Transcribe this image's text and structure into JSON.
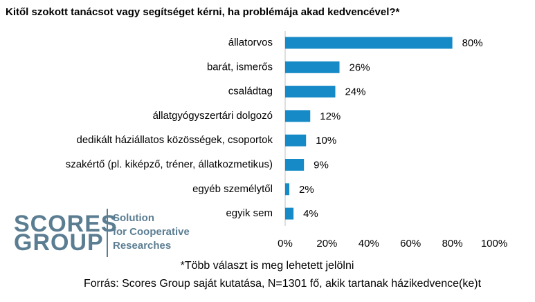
{
  "chart_data": {
    "type": "bar",
    "orientation": "horizontal",
    "title": "Kitől szokott tanácsot vagy segítséget kérni, ha problémája akad kedvencével?*",
    "categories": [
      "állatorvos",
      "barát, ismerős",
      "családtag",
      "állatgyógyszertári dolgozó",
      "dedikált háziállatos közösségek, csoportok",
      "szakértő (pl. kiképző, tréner, állatkozmetikus)",
      "egyéb személytől",
      "egyik sem"
    ],
    "values": [
      80,
      26,
      24,
      12,
      10,
      9,
      2,
      4
    ],
    "value_labels": [
      "80%",
      "26%",
      "24%",
      "12%",
      "10%",
      "9%",
      "2%",
      "4%"
    ],
    "color": "#168ac6",
    "xlim": [
      0,
      100
    ],
    "xticks": [
      {
        "value": 0,
        "label": "0%"
      },
      {
        "value": 20,
        "label": "20%"
      },
      {
        "value": 40,
        "label": "40%"
      },
      {
        "value": 60,
        "label": "60%"
      },
      {
        "value": 80,
        "label": "80%"
      },
      {
        "value": 100,
        "label": "100%"
      }
    ],
    "grid": false,
    "notes": [
      "*Több választ is meg lehetett jelölni",
      "Forrás: Scores Group saját kutatása, N=1301 fő, akik tartanak házikedvence(ke)t"
    ]
  },
  "logo": {
    "line1": "SCORES",
    "line2": "GROUP",
    "tagline": [
      "Solution",
      "for Cooperative",
      "Researches"
    ]
  }
}
